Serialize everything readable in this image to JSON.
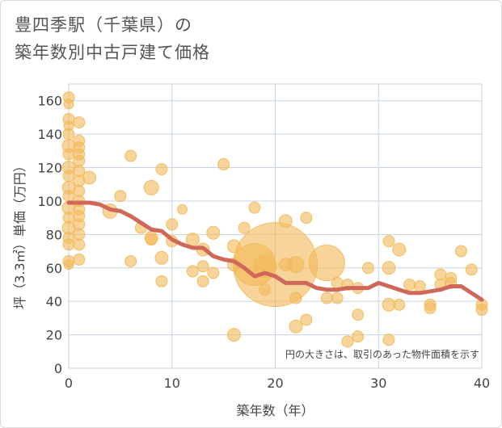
{
  "title_line1": "豊四季駅（千葉県）の",
  "title_line2": "築年数別中古戸建て価格",
  "chart_data": {
    "type": "scatter",
    "xlabel": "築年数（年）",
    "ylabel": "坪（3.3㎡）単価（万円）",
    "xlim": [
      0,
      40
    ],
    "ylim": [
      0,
      170
    ],
    "xticks": [
      0,
      10,
      20,
      30,
      40
    ],
    "yticks": [
      0,
      20,
      40,
      60,
      80,
      100,
      120,
      140,
      160
    ],
    "grid": true,
    "annotation": "円の大きさは、取引のあった物件面積を示す",
    "colors": {
      "bubble": "#f2b95a",
      "trend": "#d0685a",
      "grid": "#c8d3e0"
    },
    "points": [
      {
        "x": 0,
        "y": 162,
        "s": 7
      },
      {
        "x": 0,
        "y": 158,
        "s": 6
      },
      {
        "x": 0,
        "y": 149,
        "s": 7
      },
      {
        "x": 0,
        "y": 145,
        "s": 6
      },
      {
        "x": 0,
        "y": 140,
        "s": 7
      },
      {
        "x": 0,
        "y": 133,
        "s": 8
      },
      {
        "x": 0,
        "y": 128,
        "s": 7
      },
      {
        "x": 0,
        "y": 120,
        "s": 8
      },
      {
        "x": 0,
        "y": 115,
        "s": 7
      },
      {
        "x": 0,
        "y": 108,
        "s": 8
      },
      {
        "x": 0,
        "y": 103,
        "s": 7
      },
      {
        "x": 0,
        "y": 96,
        "s": 8
      },
      {
        "x": 0,
        "y": 90,
        "s": 7
      },
      {
        "x": 0,
        "y": 84,
        "s": 8
      },
      {
        "x": 0,
        "y": 78,
        "s": 7
      },
      {
        "x": 0,
        "y": 74,
        "s": 7
      },
      {
        "x": 0,
        "y": 64,
        "s": 7
      },
      {
        "x": 0,
        "y": 62,
        "s": 6
      },
      {
        "x": 1,
        "y": 147,
        "s": 7
      },
      {
        "x": 1,
        "y": 136,
        "s": 7
      },
      {
        "x": 1,
        "y": 132,
        "s": 7
      },
      {
        "x": 1,
        "y": 128,
        "s": 7
      },
      {
        "x": 1,
        "y": 124,
        "s": 7
      },
      {
        "x": 1,
        "y": 118,
        "s": 7
      },
      {
        "x": 1,
        "y": 112,
        "s": 7
      },
      {
        "x": 1,
        "y": 106,
        "s": 7
      },
      {
        "x": 1,
        "y": 100,
        "s": 7
      },
      {
        "x": 1,
        "y": 95,
        "s": 7
      },
      {
        "x": 1,
        "y": 91,
        "s": 7
      },
      {
        "x": 1,
        "y": 86,
        "s": 7
      },
      {
        "x": 1,
        "y": 80,
        "s": 7
      },
      {
        "x": 1,
        "y": 74,
        "s": 7
      },
      {
        "x": 1,
        "y": 65,
        "s": 7
      },
      {
        "x": 2,
        "y": 114,
        "s": 8
      },
      {
        "x": 4,
        "y": 94,
        "s": 9
      },
      {
        "x": 5,
        "y": 103,
        "s": 7
      },
      {
        "x": 6,
        "y": 127,
        "s": 7
      },
      {
        "x": 6,
        "y": 64,
        "s": 7
      },
      {
        "x": 7,
        "y": 84,
        "s": 7
      },
      {
        "x": 8,
        "y": 108,
        "s": 9
      },
      {
        "x": 8,
        "y": 78,
        "s": 8
      },
      {
        "x": 8,
        "y": 77,
        "s": 7
      },
      {
        "x": 9,
        "y": 119,
        "s": 7
      },
      {
        "x": 9,
        "y": 66,
        "s": 8
      },
      {
        "x": 9,
        "y": 52,
        "s": 7
      },
      {
        "x": 10,
        "y": 86,
        "s": 7
      },
      {
        "x": 10,
        "y": 76,
        "s": 7
      },
      {
        "x": 11,
        "y": 95,
        "s": 6
      },
      {
        "x": 12,
        "y": 77,
        "s": 8
      },
      {
        "x": 12,
        "y": 58,
        "s": 7
      },
      {
        "x": 13,
        "y": 71,
        "s": 8
      },
      {
        "x": 13,
        "y": 61,
        "s": 7
      },
      {
        "x": 13,
        "y": 52,
        "s": 7
      },
      {
        "x": 14,
        "y": 81,
        "s": 8
      },
      {
        "x": 14,
        "y": 57,
        "s": 7
      },
      {
        "x": 15,
        "y": 122,
        "s": 7
      },
      {
        "x": 16,
        "y": 73,
        "s": 8
      },
      {
        "x": 16,
        "y": 62,
        "s": 8
      },
      {
        "x": 16,
        "y": 20,
        "s": 8
      },
      {
        "x": 17,
        "y": 84,
        "s": 7
      },
      {
        "x": 18,
        "y": 96,
        "s": 7
      },
      {
        "x": 18,
        "y": 62,
        "s": 26
      },
      {
        "x": 19,
        "y": 47,
        "s": 7
      },
      {
        "x": 19,
        "y": 61,
        "s": 14
      },
      {
        "x": 20,
        "y": 62,
        "s": 52
      },
      {
        "x": 21,
        "y": 88,
        "s": 8
      },
      {
        "x": 21,
        "y": 62,
        "s": 8
      },
      {
        "x": 22,
        "y": 62,
        "s": 10
      },
      {
        "x": 22,
        "y": 42,
        "s": 7
      },
      {
        "x": 22,
        "y": 25,
        "s": 8
      },
      {
        "x": 23,
        "y": 90,
        "s": 7
      },
      {
        "x": 23,
        "y": 29,
        "s": 7
      },
      {
        "x": 25,
        "y": 63,
        "s": 22
      },
      {
        "x": 25,
        "y": 42,
        "s": 7
      },
      {
        "x": 26,
        "y": 51,
        "s": 7
      },
      {
        "x": 26,
        "y": 42,
        "s": 7
      },
      {
        "x": 27,
        "y": 50,
        "s": 7
      },
      {
        "x": 27,
        "y": 16,
        "s": 7
      },
      {
        "x": 28,
        "y": 48,
        "s": 7
      },
      {
        "x": 28,
        "y": 32,
        "s": 7
      },
      {
        "x": 28,
        "y": 19,
        "s": 7
      },
      {
        "x": 29,
        "y": 60,
        "s": 7
      },
      {
        "x": 31,
        "y": 76,
        "s": 7
      },
      {
        "x": 31,
        "y": 60,
        "s": 8
      },
      {
        "x": 31,
        "y": 38,
        "s": 8
      },
      {
        "x": 31,
        "y": 17,
        "s": 7
      },
      {
        "x": 32,
        "y": 71,
        "s": 8
      },
      {
        "x": 32,
        "y": 38,
        "s": 7
      },
      {
        "x": 33,
        "y": 50,
        "s": 7
      },
      {
        "x": 34,
        "y": 49,
        "s": 7
      },
      {
        "x": 35,
        "y": 38,
        "s": 7
      },
      {
        "x": 35,
        "y": 36,
        "s": 7
      },
      {
        "x": 36,
        "y": 56,
        "s": 7
      },
      {
        "x": 36,
        "y": 50,
        "s": 7
      },
      {
        "x": 37,
        "y": 54,
        "s": 7
      },
      {
        "x": 37,
        "y": 51,
        "s": 7
      },
      {
        "x": 38,
        "y": 70,
        "s": 7
      },
      {
        "x": 39,
        "y": 59,
        "s": 7
      },
      {
        "x": 40,
        "y": 38,
        "s": 7
      },
      {
        "x": 40,
        "y": 35,
        "s": 7
      }
    ],
    "trend": {
      "x": [
        0,
        1,
        2,
        3,
        4,
        5,
        6,
        7,
        8,
        9,
        10,
        11,
        12,
        13,
        14,
        15,
        16,
        17,
        18,
        19,
        20,
        21,
        22,
        23,
        24,
        25,
        26,
        27,
        28,
        29,
        30,
        31,
        32,
        33,
        34,
        35,
        36,
        37,
        38,
        39,
        40
      ],
      "y": [
        99,
        99,
        99,
        98,
        95,
        94,
        91,
        87,
        83,
        82,
        77,
        74,
        72,
        72,
        67,
        65,
        64,
        60,
        55,
        57,
        55,
        51,
        51,
        51,
        48,
        47,
        47,
        48,
        48,
        48,
        51,
        49,
        47,
        45,
        45,
        46,
        47,
        49,
        49,
        45,
        41
      ]
    }
  }
}
